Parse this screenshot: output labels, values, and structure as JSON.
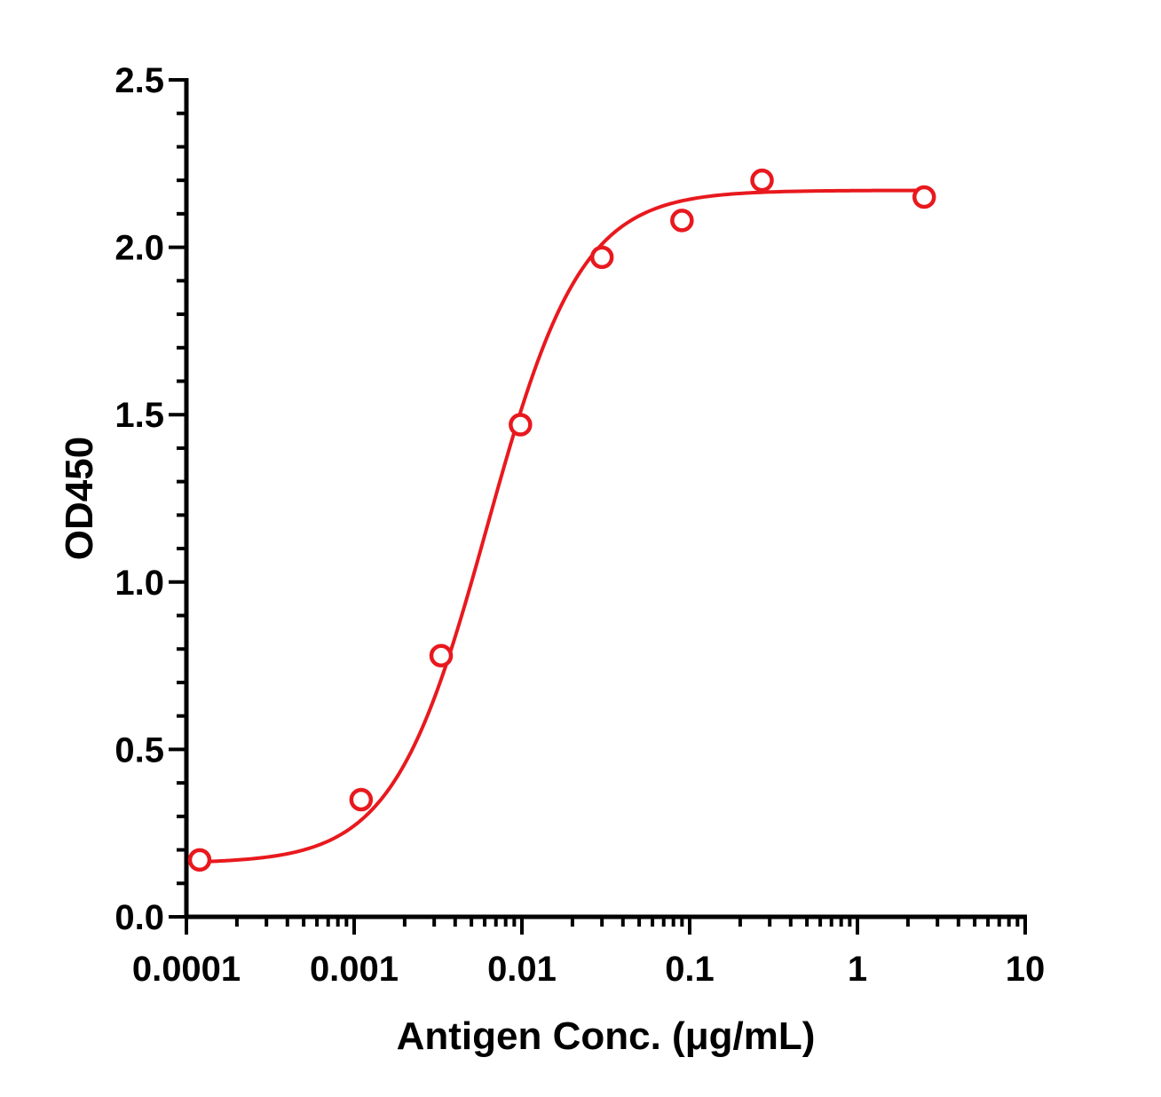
{
  "chart_data": {
    "type": "scatter",
    "title": "",
    "xlabel": "Antigen Conc. (μg/mL)",
    "ylabel": "OD450",
    "x_scale": "log",
    "xlim": [
      0.0001,
      10
    ],
    "ylim": [
      0,
      2.5
    ],
    "x_ticks": [
      0.0001,
      0.001,
      0.01,
      0.1,
      1,
      10
    ],
    "x_tick_labels": [
      "0.0001",
      "0.001",
      "0.01",
      "0.1",
      "1",
      "10"
    ],
    "y_ticks": [
      0,
      0.5,
      1.0,
      1.5,
      2.0,
      2.5
    ],
    "y_tick_labels": [
      "0.0",
      "0.5",
      "1.0",
      "1.5",
      "2.0",
      "2.5"
    ],
    "grid": false,
    "color": "#e8191e",
    "series": [
      {
        "marker": "open-circle",
        "fit": "4PL sigmoidal",
        "x": [
          0.00012,
          0.0011,
          0.0033,
          0.0098,
          0.03,
          0.09,
          0.27,
          2.5
        ],
        "y": [
          0.17,
          0.35,
          0.78,
          1.47,
          1.97,
          2.08,
          2.2,
          2.15
        ]
      }
    ],
    "fit_params": {
      "bottom": 0.16,
      "top": 2.17,
      "ec50": 0.0062,
      "hill": 1.55
    }
  }
}
